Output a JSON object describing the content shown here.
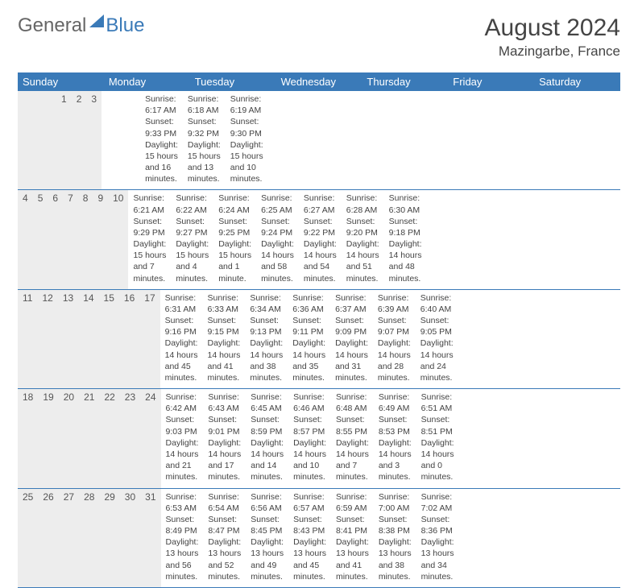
{
  "brand": {
    "part1": "General",
    "part2": "Blue"
  },
  "title": "August 2024",
  "location": "Mazingarbe, France",
  "colors": {
    "header_bg": "#3a7ab8",
    "header_text": "#ffffff",
    "daynum_bg": "#ededed",
    "text": "#444444",
    "border": "#3a7ab8",
    "background": "#ffffff"
  },
  "day_labels": [
    "Sunday",
    "Monday",
    "Tuesday",
    "Wednesday",
    "Thursday",
    "Friday",
    "Saturday"
  ],
  "weeks": [
    [
      {
        "n": "",
        "sunrise": "",
        "sunset": "",
        "daylight": ""
      },
      {
        "n": "",
        "sunrise": "",
        "sunset": "",
        "daylight": ""
      },
      {
        "n": "",
        "sunrise": "",
        "sunset": "",
        "daylight": ""
      },
      {
        "n": "",
        "sunrise": "",
        "sunset": "",
        "daylight": ""
      },
      {
        "n": "1",
        "sunrise": "Sunrise: 6:17 AM",
        "sunset": "Sunset: 9:33 PM",
        "daylight": "Daylight: 15 hours and 16 minutes."
      },
      {
        "n": "2",
        "sunrise": "Sunrise: 6:18 AM",
        "sunset": "Sunset: 9:32 PM",
        "daylight": "Daylight: 15 hours and 13 minutes."
      },
      {
        "n": "3",
        "sunrise": "Sunrise: 6:19 AM",
        "sunset": "Sunset: 9:30 PM",
        "daylight": "Daylight: 15 hours and 10 minutes."
      }
    ],
    [
      {
        "n": "4",
        "sunrise": "Sunrise: 6:21 AM",
        "sunset": "Sunset: 9:29 PM",
        "daylight": "Daylight: 15 hours and 7 minutes."
      },
      {
        "n": "5",
        "sunrise": "Sunrise: 6:22 AM",
        "sunset": "Sunset: 9:27 PM",
        "daylight": "Daylight: 15 hours and 4 minutes."
      },
      {
        "n": "6",
        "sunrise": "Sunrise: 6:24 AM",
        "sunset": "Sunset: 9:25 PM",
        "daylight": "Daylight: 15 hours and 1 minute."
      },
      {
        "n": "7",
        "sunrise": "Sunrise: 6:25 AM",
        "sunset": "Sunset: 9:24 PM",
        "daylight": "Daylight: 14 hours and 58 minutes."
      },
      {
        "n": "8",
        "sunrise": "Sunrise: 6:27 AM",
        "sunset": "Sunset: 9:22 PM",
        "daylight": "Daylight: 14 hours and 54 minutes."
      },
      {
        "n": "9",
        "sunrise": "Sunrise: 6:28 AM",
        "sunset": "Sunset: 9:20 PM",
        "daylight": "Daylight: 14 hours and 51 minutes."
      },
      {
        "n": "10",
        "sunrise": "Sunrise: 6:30 AM",
        "sunset": "Sunset: 9:18 PM",
        "daylight": "Daylight: 14 hours and 48 minutes."
      }
    ],
    [
      {
        "n": "11",
        "sunrise": "Sunrise: 6:31 AM",
        "sunset": "Sunset: 9:16 PM",
        "daylight": "Daylight: 14 hours and 45 minutes."
      },
      {
        "n": "12",
        "sunrise": "Sunrise: 6:33 AM",
        "sunset": "Sunset: 9:15 PM",
        "daylight": "Daylight: 14 hours and 41 minutes."
      },
      {
        "n": "13",
        "sunrise": "Sunrise: 6:34 AM",
        "sunset": "Sunset: 9:13 PM",
        "daylight": "Daylight: 14 hours and 38 minutes."
      },
      {
        "n": "14",
        "sunrise": "Sunrise: 6:36 AM",
        "sunset": "Sunset: 9:11 PM",
        "daylight": "Daylight: 14 hours and 35 minutes."
      },
      {
        "n": "15",
        "sunrise": "Sunrise: 6:37 AM",
        "sunset": "Sunset: 9:09 PM",
        "daylight": "Daylight: 14 hours and 31 minutes."
      },
      {
        "n": "16",
        "sunrise": "Sunrise: 6:39 AM",
        "sunset": "Sunset: 9:07 PM",
        "daylight": "Daylight: 14 hours and 28 minutes."
      },
      {
        "n": "17",
        "sunrise": "Sunrise: 6:40 AM",
        "sunset": "Sunset: 9:05 PM",
        "daylight": "Daylight: 14 hours and 24 minutes."
      }
    ],
    [
      {
        "n": "18",
        "sunrise": "Sunrise: 6:42 AM",
        "sunset": "Sunset: 9:03 PM",
        "daylight": "Daylight: 14 hours and 21 minutes."
      },
      {
        "n": "19",
        "sunrise": "Sunrise: 6:43 AM",
        "sunset": "Sunset: 9:01 PM",
        "daylight": "Daylight: 14 hours and 17 minutes."
      },
      {
        "n": "20",
        "sunrise": "Sunrise: 6:45 AM",
        "sunset": "Sunset: 8:59 PM",
        "daylight": "Daylight: 14 hours and 14 minutes."
      },
      {
        "n": "21",
        "sunrise": "Sunrise: 6:46 AM",
        "sunset": "Sunset: 8:57 PM",
        "daylight": "Daylight: 14 hours and 10 minutes."
      },
      {
        "n": "22",
        "sunrise": "Sunrise: 6:48 AM",
        "sunset": "Sunset: 8:55 PM",
        "daylight": "Daylight: 14 hours and 7 minutes."
      },
      {
        "n": "23",
        "sunrise": "Sunrise: 6:49 AM",
        "sunset": "Sunset: 8:53 PM",
        "daylight": "Daylight: 14 hours and 3 minutes."
      },
      {
        "n": "24",
        "sunrise": "Sunrise: 6:51 AM",
        "sunset": "Sunset: 8:51 PM",
        "daylight": "Daylight: 14 hours and 0 minutes."
      }
    ],
    [
      {
        "n": "25",
        "sunrise": "Sunrise: 6:53 AM",
        "sunset": "Sunset: 8:49 PM",
        "daylight": "Daylight: 13 hours and 56 minutes."
      },
      {
        "n": "26",
        "sunrise": "Sunrise: 6:54 AM",
        "sunset": "Sunset: 8:47 PM",
        "daylight": "Daylight: 13 hours and 52 minutes."
      },
      {
        "n": "27",
        "sunrise": "Sunrise: 6:56 AM",
        "sunset": "Sunset: 8:45 PM",
        "daylight": "Daylight: 13 hours and 49 minutes."
      },
      {
        "n": "28",
        "sunrise": "Sunrise: 6:57 AM",
        "sunset": "Sunset: 8:43 PM",
        "daylight": "Daylight: 13 hours and 45 minutes."
      },
      {
        "n": "29",
        "sunrise": "Sunrise: 6:59 AM",
        "sunset": "Sunset: 8:41 PM",
        "daylight": "Daylight: 13 hours and 41 minutes."
      },
      {
        "n": "30",
        "sunrise": "Sunrise: 7:00 AM",
        "sunset": "Sunset: 8:38 PM",
        "daylight": "Daylight: 13 hours and 38 minutes."
      },
      {
        "n": "31",
        "sunrise": "Sunrise: 7:02 AM",
        "sunset": "Sunset: 8:36 PM",
        "daylight": "Daylight: 13 hours and 34 minutes."
      }
    ]
  ]
}
